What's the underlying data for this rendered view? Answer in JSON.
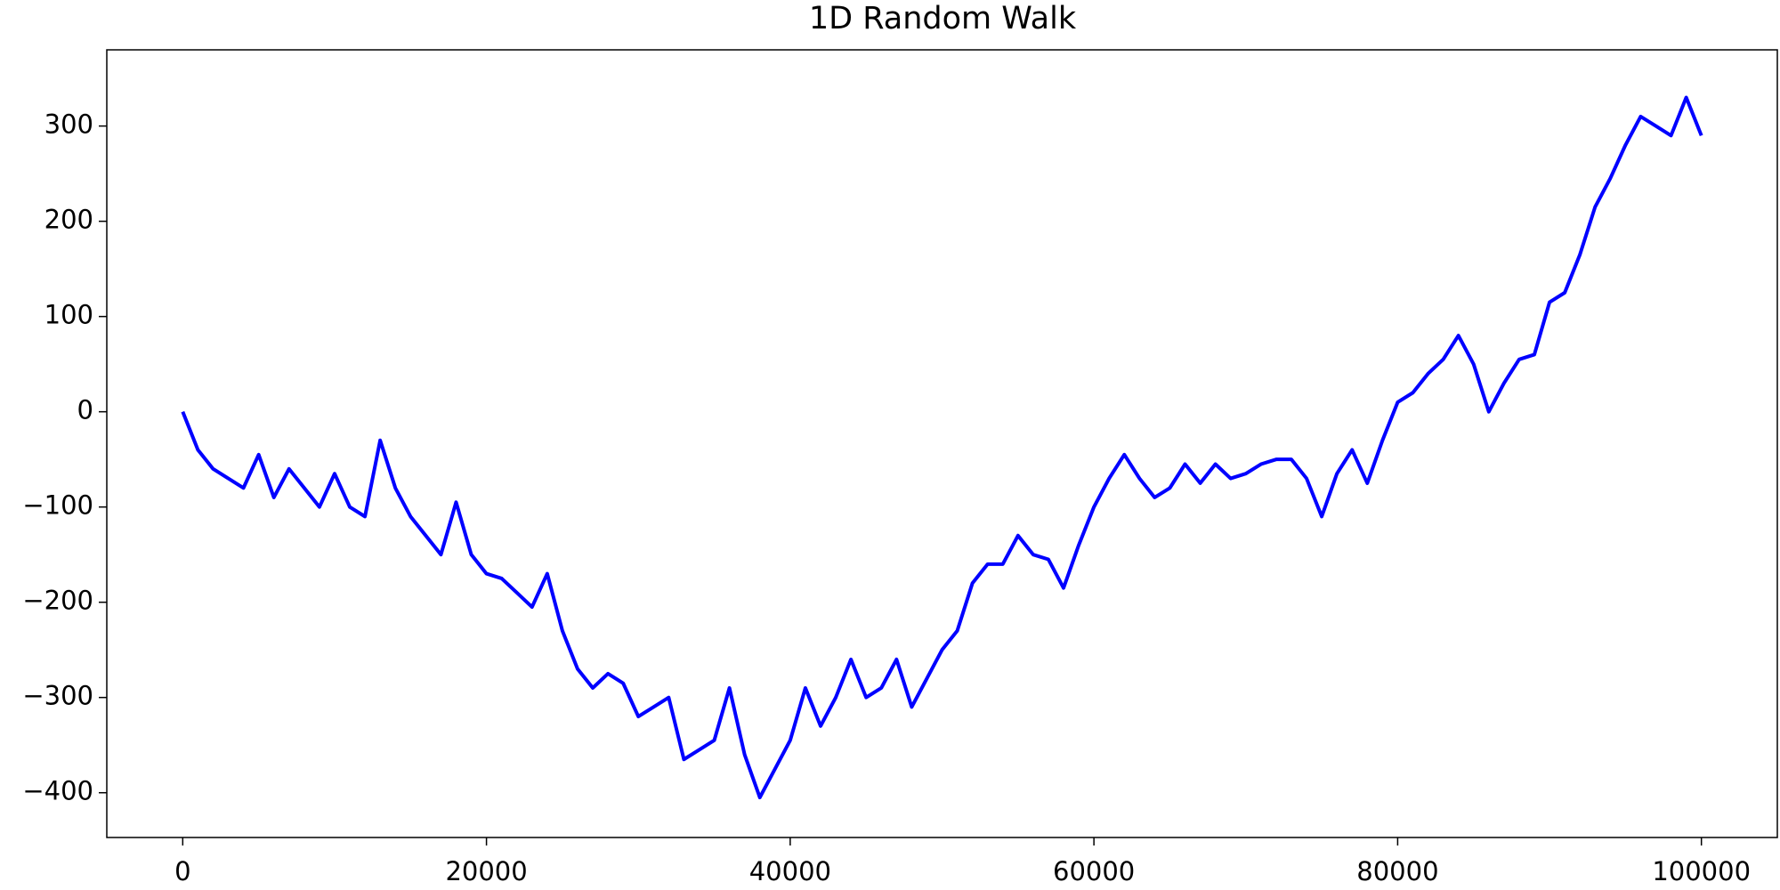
{
  "chart_data": {
    "type": "line",
    "title": "1D Random Walk",
    "x": [
      0,
      1000,
      2000,
      3000,
      4000,
      5000,
      6000,
      7000,
      8000,
      9000,
      10000,
      11000,
      12000,
      13000,
      14000,
      15000,
      16000,
      17000,
      18000,
      19000,
      20000,
      21000,
      22000,
      23000,
      24000,
      25000,
      26000,
      27000,
      28000,
      29000,
      30000,
      31000,
      32000,
      33000,
      34000,
      35000,
      36000,
      37000,
      38000,
      39000,
      40000,
      41000,
      42000,
      43000,
      44000,
      45000,
      46000,
      47000,
      48000,
      49000,
      50000,
      51000,
      52000,
      53000,
      54000,
      55000,
      56000,
      57000,
      58000,
      59000,
      60000,
      61000,
      62000,
      63000,
      64000,
      65000,
      66000,
      67000,
      68000,
      69000,
      70000,
      71000,
      72000,
      73000,
      74000,
      75000,
      76000,
      77000,
      78000,
      79000,
      80000,
      81000,
      82000,
      83000,
      84000,
      85000,
      86000,
      87000,
      88000,
      89000,
      90000,
      91000,
      92000,
      93000,
      94000,
      95000,
      96000,
      97000,
      98000,
      99000,
      100000
    ],
    "values": [
      0,
      -40,
      -60,
      -70,
      -80,
      -45,
      -90,
      -60,
      -80,
      -100,
      -65,
      -100,
      -110,
      -30,
      -80,
      -110,
      -130,
      -150,
      -95,
      -150,
      -170,
      -175,
      -190,
      -205,
      -170,
      -230,
      -270,
      -290,
      -275,
      -285,
      -320,
      -310,
      -300,
      -365,
      -355,
      -345,
      -290,
      -360,
      -405,
      -375,
      -345,
      -290,
      -330,
      -300,
      -260,
      -300,
      -290,
      -260,
      -310,
      -280,
      -250,
      -230,
      -180,
      -160,
      -160,
      -130,
      -150,
      -155,
      -185,
      -140,
      -100,
      -70,
      -45,
      -70,
      -90,
      -80,
      -55,
      -75,
      -55,
      -70,
      -65,
      -55,
      -50,
      -50,
      -70,
      -110,
      -65,
      -40,
      -75,
      -30,
      10,
      20,
      40,
      55,
      80,
      50,
      0,
      30,
      55,
      60,
      115,
      125,
      165,
      215,
      245,
      280,
      310,
      300,
      290,
      330,
      290
    ],
    "color": "#0000ff",
    "xlim": [
      -5000,
      105000
    ],
    "xticks": [
      0,
      20000,
      40000,
      60000,
      80000,
      100000
    ],
    "ylim": [
      -447,
      380
    ],
    "yticks": [
      {
        "value": -400,
        "label": "−400"
      },
      {
        "value": -300,
        "label": "−300"
      },
      {
        "value": -200,
        "label": "−200"
      },
      {
        "value": -100,
        "label": "−100"
      },
      0,
      100,
      200,
      300
    ]
  }
}
